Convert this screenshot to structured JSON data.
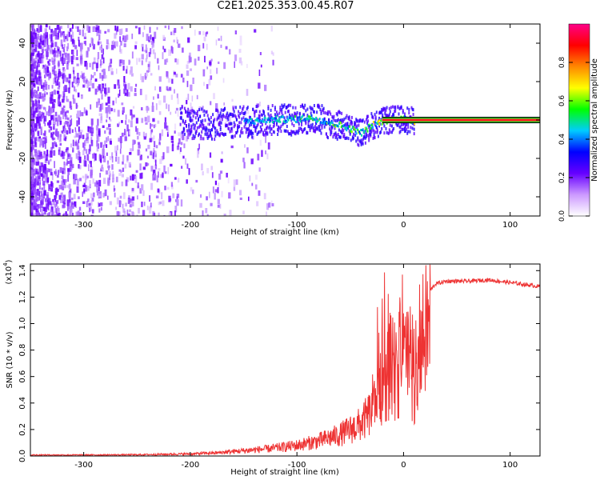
{
  "title": "C2E1.2025.353.00.45.R07",
  "chart_data": [
    {
      "type": "heatmap",
      "xlabel": "Height of straight line (km)",
      "ylabel": "Frequency (Hz)",
      "xlim": [
        -350,
        128
      ],
      "ylim": [
        -50,
        50
      ],
      "xticks": [
        -300,
        -200,
        -100,
        0,
        100
      ],
      "yticks": [
        -40,
        -20,
        0,
        20,
        40
      ],
      "colorbar": {
        "label": "Normalized spectral amplitude",
        "range": [
          0,
          1
        ],
        "ticks": [
          "0.0",
          "0.2",
          "0.4",
          "0.6",
          "0.8"
        ],
        "colors": [
          "#ffffff",
          "#cc99ff",
          "#6600ff",
          "#0000ff",
          "#00ccff",
          "#00ff00",
          "#ffff00",
          "#ff8800",
          "#ff0000",
          "#ff0088"
        ]
      },
      "ridge": {
        "x": [
          -200,
          -180,
          -160,
          -140,
          -120,
          -100,
          -90,
          -80,
          -70,
          -60,
          -50,
          -40,
          -30,
          -20,
          -10,
          0,
          10,
          128
        ],
        "freq": [
          -1,
          -2,
          0,
          0,
          1,
          1,
          2,
          1,
          -1,
          -2,
          -4,
          -6,
          -2,
          0,
          1,
          1,
          0,
          0
        ]
      }
    },
    {
      "type": "line",
      "xlabel": "Height of straight line (km)",
      "ylabel": "SNR (10 * v/v)",
      "multiplier": "(x10",
      "multiplier_exp": "4",
      "xlim": [
        -350,
        128
      ],
      "ylim": [
        0,
        1.45
      ],
      "xticks": [
        -300,
        -200,
        -100,
        0,
        100
      ],
      "yticks": [
        "0.0",
        "0.2",
        "0.4",
        "0.6",
        "0.8",
        "1.0",
        "1.2",
        "1.4"
      ],
      "color": "#ee3333",
      "series": [
        {
          "x": [
            -350,
            -300,
            -250,
            -200,
            -175,
            -150,
            -125,
            -100,
            -80,
            -60,
            -50,
            -40,
            -30,
            -25,
            -20,
            -15,
            -10,
            -5,
            0,
            5,
            10,
            15,
            20,
            25,
            30,
            40,
            60,
            80,
            100,
            128
          ],
          "values": [
            0.01,
            0.01,
            0.012,
            0.02,
            0.03,
            0.05,
            0.07,
            0.1,
            0.14,
            0.2,
            0.25,
            0.3,
            0.42,
            0.55,
            0.8,
            0.9,
            0.85,
            0.95,
            0.9,
            1.0,
            0.8,
            1.05,
            1.15,
            1.25,
            1.3,
            1.32,
            1.32,
            1.33,
            1.31,
            1.28
          ]
        }
      ]
    }
  ]
}
